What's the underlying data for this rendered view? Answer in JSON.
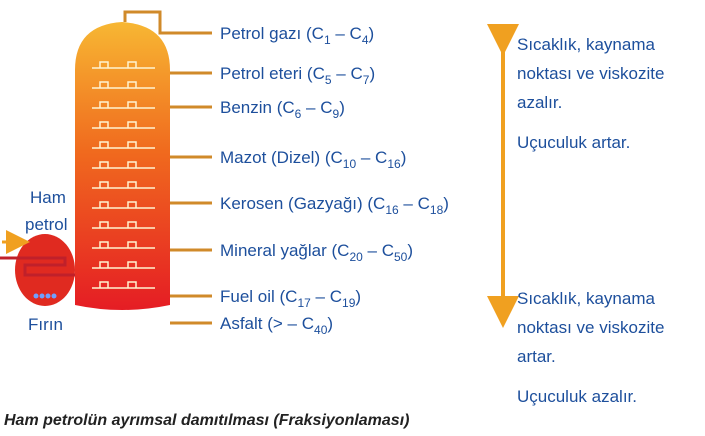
{
  "fractions": [
    {
      "parts": [
        "Petrol gazı (C",
        "1",
        " – C",
        "4",
        ")"
      ]
    },
    {
      "parts": [
        "Petrol eteri (C",
        "5",
        " – C",
        "7",
        ")"
      ]
    },
    {
      "parts": [
        "Benzin (C",
        "6",
        " – C",
        "9",
        ")"
      ]
    },
    {
      "parts": [
        "Mazot (Dizel) (C",
        "10",
        " – C",
        "16",
        ")"
      ]
    },
    {
      "parts": [
        "Kerosen (Gazyağı) (C",
        "16",
        " – C",
        "18",
        ")"
      ]
    },
    {
      "parts": [
        "Mineral yağlar (C",
        "20",
        " – C",
        "50",
        ")"
      ]
    },
    {
      "parts": [
        "Fuel oil (C",
        "17",
        " – C",
        "19",
        ")"
      ]
    },
    {
      "parts": [
        "Asfalt (> – C",
        "40",
        ")"
      ]
    }
  ],
  "top_note": {
    "lines": [
      "Sıcaklık, kaynama",
      "noktası ve viskozite",
      "azalır."
    ],
    "extra": "Uçuculuk artar."
  },
  "bottom_note": {
    "lines": [
      "Sıcaklık, kaynama",
      "noktası ve viskozite",
      "artar."
    ],
    "extra": "Uçuculuk azalır."
  },
  "furnace": {
    "input": [
      "Ham",
      "petrol"
    ],
    "label": "Fırın"
  },
  "caption": "Ham petrolün ayrımsal damıtılması (Fraksiyonlaması)"
}
